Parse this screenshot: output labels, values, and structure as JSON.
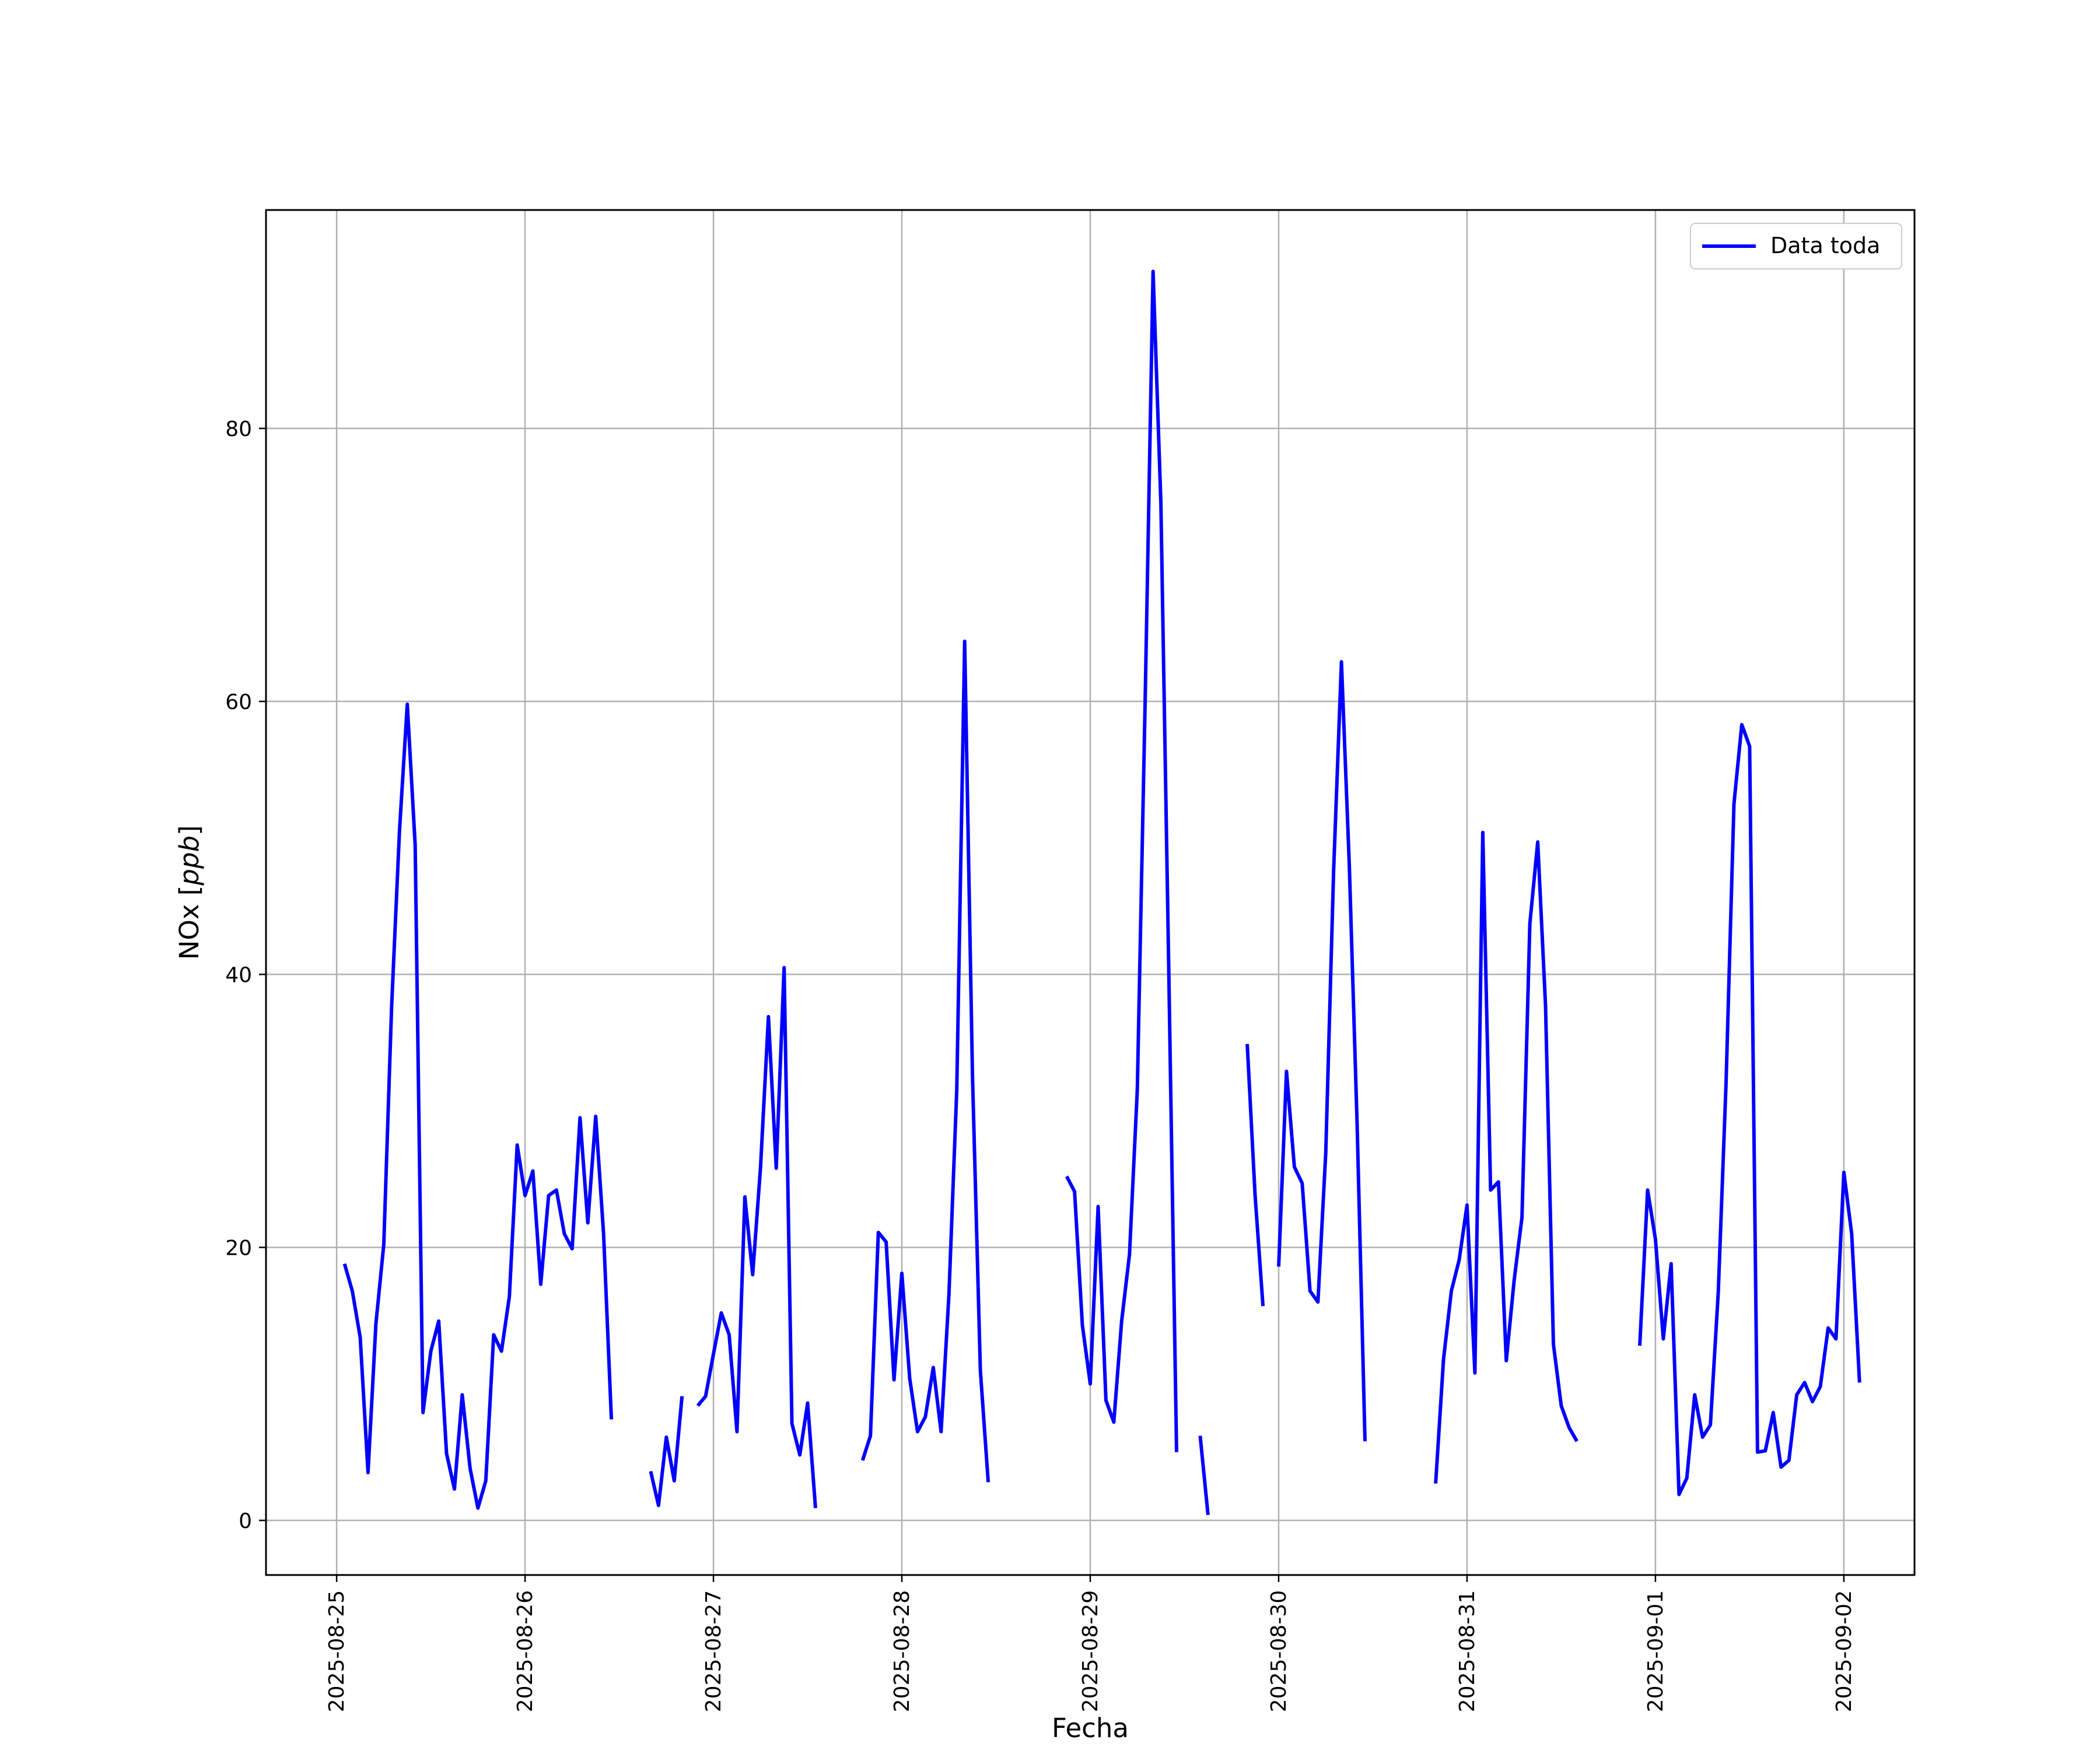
{
  "chart_data": {
    "type": "line",
    "xlabel": "Fecha",
    "ylabel_main": "NOx",
    "ylabel_unit": "ppb",
    "xlim": [
      "2025-08-24T15:00",
      "2025-09-02T09:00"
    ],
    "ylim": [
      -4,
      96
    ],
    "grid": true,
    "legend_position": "top-right",
    "x_ticks": [
      "2025-08-25",
      "2025-08-26",
      "2025-08-27",
      "2025-08-28",
      "2025-08-29",
      "2025-08-30",
      "2025-08-31",
      "2025-09-01",
      "2025-09-02"
    ],
    "y_ticks": [
      0,
      20,
      40,
      60,
      80
    ],
    "series": [
      {
        "name": "Data toda",
        "color": "#0000ff",
        "segments": [
          [
            [
              "2025-08-25T01:00",
              18.8
            ],
            [
              "2025-08-25T02:00",
              16.8
            ],
            [
              "2025-08-25T03:00",
              13.4
            ],
            [
              "2025-08-25T04:00",
              3.5
            ],
            [
              "2025-08-25T05:00",
              14.4
            ],
            [
              "2025-08-25T06:00",
              20.2
            ],
            [
              "2025-08-25T07:00",
              37.6
            ],
            [
              "2025-08-25T08:00",
              50.5
            ],
            [
              "2025-08-25T09:00",
              59.8
            ],
            [
              "2025-08-25T10:00",
              49.5
            ],
            [
              "2025-08-25T11:00",
              7.9
            ],
            [
              "2025-08-25T12:00",
              12.4
            ],
            [
              "2025-08-25T13:00",
              14.6
            ],
            [
              "2025-08-25T14:00",
              4.9
            ],
            [
              "2025-08-25T15:00",
              2.3
            ],
            [
              "2025-08-25T16:00",
              9.2
            ],
            [
              "2025-08-25T17:00",
              3.8
            ],
            [
              "2025-08-25T18:00",
              0.9
            ],
            [
              "2025-08-25T19:00",
              2.9
            ],
            [
              "2025-08-25T20:00",
              13.6
            ],
            [
              "2025-08-25T21:00",
              12.4
            ],
            [
              "2025-08-25T22:00",
              16.4
            ],
            [
              "2025-08-25T23:00",
              27.5
            ],
            [
              "2025-08-26T00:00",
              23.8
            ],
            [
              "2025-08-26T01:00",
              25.6
            ],
            [
              "2025-08-26T02:00",
              17.3
            ],
            [
              "2025-08-26T03:00",
              23.8
            ],
            [
              "2025-08-26T04:00",
              24.2
            ],
            [
              "2025-08-26T05:00",
              21.0
            ],
            [
              "2025-08-26T06:00",
              19.9
            ],
            [
              "2025-08-26T07:00",
              29.5
            ],
            [
              "2025-08-26T08:00",
              21.8
            ],
            [
              "2025-08-26T09:00",
              29.6
            ],
            [
              "2025-08-26T10:00",
              21.0
            ],
            [
              "2025-08-26T11:00",
              7.4
            ]
          ],
          [
            [
              "2025-08-26T16:00",
              3.6
            ],
            [
              "2025-08-26T17:00",
              1.1
            ],
            [
              "2025-08-26T18:00",
              6.1
            ],
            [
              "2025-08-26T19:00",
              2.9
            ],
            [
              "2025-08-26T20:00",
              9.1
            ]
          ],
          [
            [
              "2025-08-26T22:00",
              8.4
            ],
            [
              "2025-08-26T23:00",
              9.1
            ],
            [
              "2025-08-27T00:00",
              12.2
            ],
            [
              "2025-08-27T01:00",
              15.2
            ],
            [
              "2025-08-27T02:00",
              13.6
            ],
            [
              "2025-08-27T03:00",
              6.5
            ],
            [
              "2025-08-27T04:00",
              23.7
            ],
            [
              "2025-08-27T05:00",
              18.0
            ],
            [
              "2025-08-27T06:00",
              25.9
            ],
            [
              "2025-08-27T07:00",
              36.9
            ],
            [
              "2025-08-27T08:00",
              25.8
            ],
            [
              "2025-08-27T09:00",
              40.5
            ],
            [
              "2025-08-27T10:00",
              7.1
            ],
            [
              "2025-08-27T11:00",
              4.8
            ],
            [
              "2025-08-27T12:00",
              8.6
            ],
            [
              "2025-08-27T13:00",
              0.9
            ]
          ],
          [
            [
              "2025-08-27T19:00",
              4.4
            ],
            [
              "2025-08-27T20:00",
              6.2
            ],
            [
              "2025-08-27T21:00",
              21.1
            ],
            [
              "2025-08-27T22:00",
              20.4
            ],
            [
              "2025-08-27T23:00",
              10.3
            ],
            [
              "2025-08-28T00:00",
              18.1
            ],
            [
              "2025-08-28T01:00",
              10.4
            ],
            [
              "2025-08-28T02:00",
              6.5
            ],
            [
              "2025-08-28T03:00",
              7.6
            ],
            [
              "2025-08-28T04:00",
              11.2
            ],
            [
              "2025-08-28T05:00",
              6.5
            ],
            [
              "2025-08-28T06:00",
              16.6
            ],
            [
              "2025-08-28T07:00",
              31.6
            ],
            [
              "2025-08-28T08:00",
              64.4
            ],
            [
              "2025-08-28T09:00",
              32.6
            ],
            [
              "2025-08-28T10:00",
              11.0
            ],
            [
              "2025-08-28T11:00",
              2.8
            ]
          ],
          [
            [
              "2025-08-28T21:00",
              25.2
            ],
            [
              "2025-08-28T22:00",
              24.1
            ],
            [
              "2025-08-28T23:00",
              14.3
            ],
            [
              "2025-08-29T00:00",
              10.0
            ],
            [
              "2025-08-29T01:00",
              23.0
            ],
            [
              "2025-08-29T02:00",
              8.8
            ],
            [
              "2025-08-29T03:00",
              7.2
            ],
            [
              "2025-08-29T04:00",
              14.6
            ],
            [
              "2025-08-29T05:00",
              19.5
            ],
            [
              "2025-08-29T06:00",
              31.6
            ],
            [
              "2025-08-29T07:00",
              60.2
            ],
            [
              "2025-08-29T08:00",
              91.5
            ],
            [
              "2025-08-29T09:00",
              74.5
            ],
            [
              "2025-08-29T10:00",
              40.3
            ],
            [
              "2025-08-29T11:00",
              5.0
            ]
          ],
          [
            [
              "2025-08-29T14:00",
              6.2
            ],
            [
              "2025-08-29T15:00",
              0.4
            ]
          ],
          [
            [
              "2025-08-29T20:00",
              34.9
            ],
            [
              "2025-08-29T21:00",
              23.8
            ],
            [
              "2025-08-29T22:00",
              15.7
            ]
          ],
          [
            [
              "2025-08-30T00:00",
              18.6
            ],
            [
              "2025-08-30T01:00",
              32.9
            ],
            [
              "2025-08-30T02:00",
              25.9
            ],
            [
              "2025-08-30T03:00",
              24.7
            ],
            [
              "2025-08-30T04:00",
              16.8
            ],
            [
              "2025-08-30T05:00",
              16.0
            ],
            [
              "2025-08-30T06:00",
              26.9
            ],
            [
              "2025-08-30T07:00",
              47.6
            ],
            [
              "2025-08-30T08:00",
              62.9
            ],
            [
              "2025-08-30T09:00",
              48.0
            ],
            [
              "2025-08-30T10:00",
              29.0
            ],
            [
              "2025-08-30T11:00",
              5.8
            ]
          ],
          [
            [
              "2025-08-30T20:00",
              2.7
            ],
            [
              "2025-08-30T21:00",
              11.8
            ],
            [
              "2025-08-30T22:00",
              16.8
            ],
            [
              "2025-08-30T23:00",
              19.1
            ],
            [
              "2025-08-31T00:00",
              23.1
            ],
            [
              "2025-08-31T01:00",
              10.8
            ],
            [
              "2025-08-31T02:00",
              50.4
            ],
            [
              "2025-08-31T03:00",
              24.2
            ],
            [
              "2025-08-31T04:00",
              24.8
            ],
            [
              "2025-08-31T05:00",
              11.7
            ],
            [
              "2025-08-31T06:00",
              17.6
            ],
            [
              "2025-08-31T07:00",
              22.2
            ],
            [
              "2025-08-31T08:00",
              43.7
            ],
            [
              "2025-08-31T09:00",
              49.7
            ],
            [
              "2025-08-31T10:00",
              37.7
            ],
            [
              "2025-08-31T11:00",
              12.9
            ],
            [
              "2025-08-31T12:00",
              8.4
            ],
            [
              "2025-08-31T13:00",
              6.8
            ],
            [
              "2025-08-31T14:00",
              5.8
            ]
          ],
          [
            [
              "2025-08-31T22:00",
              12.8
            ],
            [
              "2025-08-31T23:00",
              24.2
            ],
            [
              "2025-09-01T00:00",
              20.6
            ],
            [
              "2025-09-01T01:00",
              13.3
            ],
            [
              "2025-09-01T02:00",
              18.8
            ],
            [
              "2025-09-01T03:00",
              1.9
            ],
            [
              "2025-09-01T04:00",
              3.1
            ],
            [
              "2025-09-01T05:00",
              9.2
            ],
            [
              "2025-09-01T06:00",
              6.1
            ],
            [
              "2025-09-01T07:00",
              7.0
            ],
            [
              "2025-09-01T08:00",
              16.7
            ],
            [
              "2025-09-01T09:00",
              32.1
            ],
            [
              "2025-09-01T10:00",
              52.5
            ],
            [
              "2025-09-01T11:00",
              58.3
            ],
            [
              "2025-09-01T12:00",
              56.7
            ],
            [
              "2025-09-01T13:00",
              5.0
            ],
            [
              "2025-09-01T14:00",
              5.1
            ],
            [
              "2025-09-01T15:00",
              7.9
            ],
            [
              "2025-09-01T16:00",
              3.9
            ],
            [
              "2025-09-01T17:00",
              4.4
            ],
            [
              "2025-09-01T18:00",
              9.2
            ],
            [
              "2025-09-01T19:00",
              10.1
            ],
            [
              "2025-09-01T20:00",
              8.7
            ],
            [
              "2025-09-01T21:00",
              9.8
            ],
            [
              "2025-09-01T22:00",
              14.1
            ],
            [
              "2025-09-01T23:00",
              13.3
            ],
            [
              "2025-09-02T00:00",
              25.5
            ],
            [
              "2025-09-02T01:00",
              21.0
            ],
            [
              "2025-09-02T02:00",
              10.1
            ]
          ]
        ]
      }
    ]
  }
}
